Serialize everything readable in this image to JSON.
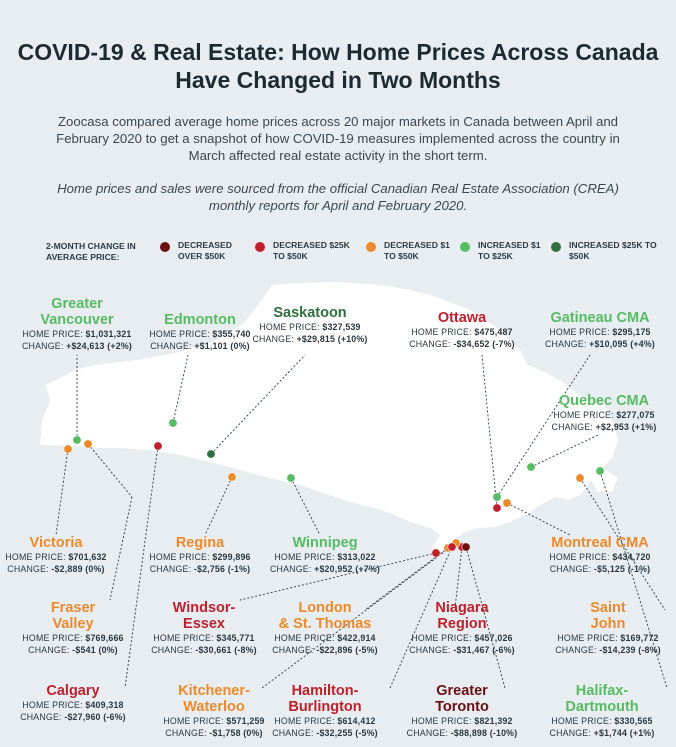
{
  "title": "COVID-19 & Real Estate: How Home Prices Across Canada Have Changed in Two Months",
  "intro": "Zoocasa compared average home prices across 20 major markets in Canada between April and February 2020 to get a snapshot of how COVID-19 measures implemented across the country in March affected real estate activity in the short term.",
  "source_note": "Home prices and sales were sourced from the official Canadian Real Estate Association (CREA) monthly reports for April and February 2020.",
  "legend": {
    "title": "2-MONTH CHANGE IN AVERAGE PRICE:",
    "items": [
      {
        "label": "DECREASED OVER $50K",
        "color": "#6b0f12"
      },
      {
        "label": "DECREASED $25K TO $50K",
        "color": "#c0202b"
      },
      {
        "label": "DECREASED $1 TO $50K",
        "color": "#ec8a2b"
      },
      {
        "label": "INCREASED $1 TO $25K",
        "color": "#56bb63"
      },
      {
        "label": "INCREASED $25K TO $50K",
        "color": "#2f6e3d"
      }
    ]
  },
  "price_label": "HOME PRICE:",
  "change_label": "CHANGE:",
  "cities": [
    {
      "name": "Greater Vancouver",
      "price": "$1,031,321",
      "change": "+$24,613 (+2%)",
      "category": 3
    },
    {
      "name": "Edmonton",
      "price": "$355,740",
      "change": "+$1,101 (0%)",
      "category": 3
    },
    {
      "name": "Saskatoon",
      "price": "$327,539",
      "change": "+$29,815 (+10%)",
      "category": 4
    },
    {
      "name": "Ottawa",
      "price": "$475,487",
      "change": "-$34,652 (-7%)",
      "category": 1
    },
    {
      "name": "Gatineau CMA",
      "price": "$295,175",
      "change": "+$10,095 (+4%)",
      "category": 3
    },
    {
      "name": "Quebec CMA",
      "price": "$277,075",
      "change": "+$2,953 (+1%)",
      "category": 3
    },
    {
      "name": "Victoria",
      "price": "$701,632",
      "change": "-$2,889 (0%)",
      "category": 2
    },
    {
      "name": "Regina",
      "price": "$299,896",
      "change": "-$2,756 (-1%)",
      "category": 2
    },
    {
      "name": "Winnipeg",
      "price": "$313,022",
      "change": "+$20,952 (+7%)",
      "category": 3
    },
    {
      "name": "Montreal CMA",
      "price": "$434,720",
      "change": "-$5,125 (-1%)",
      "category": 2
    },
    {
      "name": "Fraser Valley",
      "price": "$769,666",
      "change": "-$541 (0%)",
      "category": 2
    },
    {
      "name": "Windsor-Essex",
      "price": "$345,771",
      "change": "-$30,661 (-8%)",
      "category": 1
    },
    {
      "name": "London & St. Thomas",
      "price": "$422,914",
      "change": "-$22,896 (-5%)",
      "category": 2
    },
    {
      "name": "Niagara Region",
      "price": "$457,026",
      "change": "-$31,467 (-6%)",
      "category": 1
    },
    {
      "name": "Saint John",
      "price": "$169,772",
      "change": "-$14,239 (-8%)",
      "category": 2
    },
    {
      "name": "Calgary",
      "price": "$409,318",
      "change": "-$27,960 (-6%)",
      "category": 1
    },
    {
      "name": "Kitchener-Waterloo",
      "price": "$571,259",
      "change": "-$1,758 (0%)",
      "category": 2
    },
    {
      "name": "Hamilton-Burlington",
      "price": "$614,412",
      "change": "-$32,255 (-5%)",
      "category": 1
    },
    {
      "name": "Greater Toronto",
      "price": "$821,392",
      "change": "-$88,898 (-10%)",
      "category": 0
    },
    {
      "name": "Halifax-Dartmouth",
      "price": "$330,565",
      "change": "+$1,744 (+1%)",
      "category": 3
    }
  ]
}
